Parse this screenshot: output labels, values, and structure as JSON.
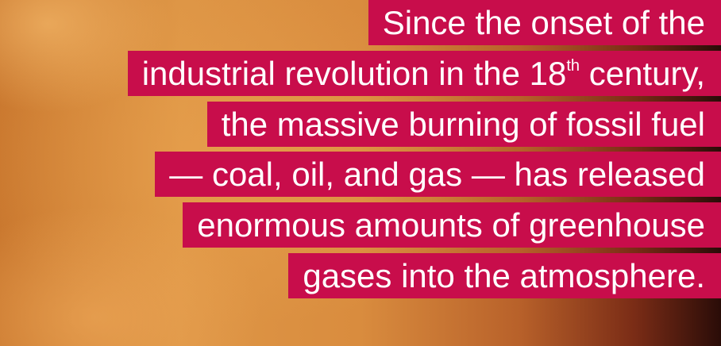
{
  "lines": [
    "Since the onset of the",
    {
      "before": "industrial revolution in the 18",
      "sup": "th",
      "after": " century,"
    },
    "the massive burning of fossil fuel",
    "— coal, oil, and gas — has released",
    "enormous amounts of greenhouse",
    "gases into the atmosphere."
  ]
}
